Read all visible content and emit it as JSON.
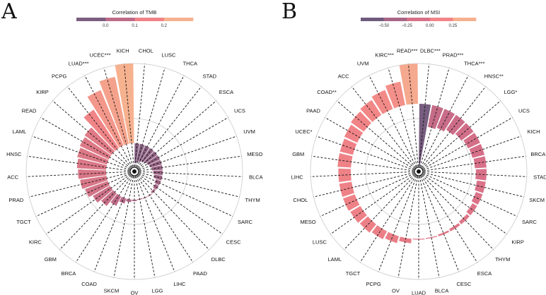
{
  "panels": [
    "A",
    "B"
  ],
  "chart_data": [
    {
      "type": "bar",
      "polar": true,
      "direction": "clockwise from top",
      "colorbar": {
        "title": "Correlation of TMB",
        "range": [
          -0.1,
          0.3
        ],
        "ticks": [
          "0.0",
          "0.1",
          "0.2"
        ],
        "tick_values": [
          0.0,
          0.1,
          0.2
        ],
        "colors": [
          "#7b5e80",
          "#bd6b88",
          "#f08287",
          "#f6b18f"
        ]
      },
      "categories": [
        "CHOL",
        "LUSC",
        "THCA",
        "STAD",
        "ESCA",
        "UCS",
        "UVM",
        "MESO",
        "BLCA",
        "THYM",
        "SARC",
        "CESC",
        "DLBC",
        "PAAD",
        "LIHC",
        "LGG",
        "OV",
        "SKCM",
        "COAD",
        "BRCA",
        "GBM",
        "KIRC",
        "TGCT",
        "PRAD",
        "ACC",
        "HNSC",
        "LAML",
        "READ",
        "KIRP",
        "PCPG",
        "LUAD***",
        "UCEC***",
        "KICH"
      ],
      "values": [
        -0.075,
        -0.07,
        -0.065,
        -0.06,
        -0.055,
        -0.05,
        -0.045,
        -0.04,
        -0.035,
        -0.03,
        -0.02,
        -0.015,
        -0.008,
        -0.003,
        0.0,
        0.003,
        0.005,
        0.01,
        0.02,
        0.04,
        0.06,
        0.075,
        0.09,
        0.1,
        0.105,
        0.11,
        0.115,
        0.12,
        0.125,
        0.172,
        0.225,
        0.257,
        0.3
      ]
    },
    {
      "type": "bar",
      "polar": true,
      "direction": "clockwise from top",
      "colorbar": {
        "title": "Correlation of MSI",
        "range": [
          -0.75,
          0.5
        ],
        "ticks": [
          "−0.50",
          "−0.25",
          "0.00",
          "0.25"
        ],
        "tick_values": [
          -0.5,
          -0.25,
          0.0,
          0.25
        ],
        "colors": [
          "#6e5b7e",
          "#a86585",
          "#d87088",
          "#f28587",
          "#f5b08f"
        ]
      },
      "categories": [
        "DLBC***",
        "PRAD***",
        "THCA***",
        "HNSC**",
        "LGG*",
        "UCS",
        "KICH",
        "BRCA*",
        "STAD",
        "SKCM",
        "SARC",
        "KIRP",
        "THYM",
        "ESCA",
        "CESC",
        "BLCA",
        "LUAD",
        "OV",
        "PCPG",
        "TGCT",
        "LAML",
        "LUSC",
        "MESO",
        "CHOL",
        "LIHC",
        "GBM",
        "UCEC*",
        "PAAD",
        "COAD**",
        "ACC",
        "UVM",
        "KIRC***",
        "READ***"
      ],
      "values": [
        -0.7,
        -0.25,
        -0.23,
        -0.2,
        -0.17,
        -0.15,
        -0.14,
        -0.13,
        -0.12,
        -0.1,
        -0.08,
        -0.06,
        -0.04,
        -0.03,
        -0.02,
        -0.01,
        0.005,
        0.05,
        0.08,
        0.1,
        0.12,
        0.13,
        0.14,
        0.14,
        0.14,
        0.15,
        0.15,
        0.16,
        0.18,
        0.2,
        0.23,
        0.27,
        0.45
      ]
    }
  ]
}
